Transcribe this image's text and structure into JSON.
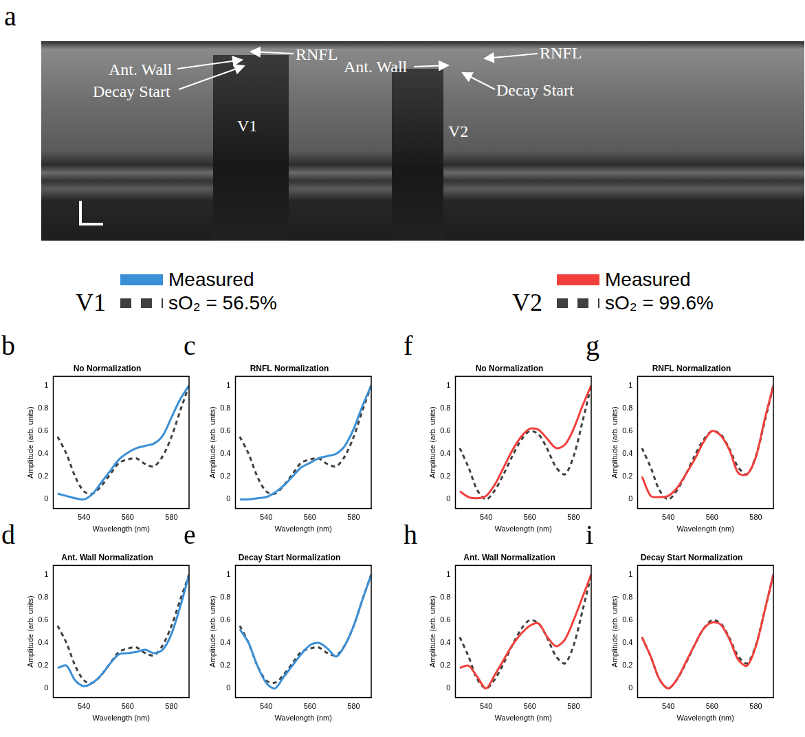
{
  "panel_a": {
    "letter": "a",
    "labels": [
      "RNFL",
      "Ant. Wall",
      "Decay Start",
      "V1",
      "RNFL",
      "Ant. Wall",
      "Decay Start",
      "V2"
    ]
  },
  "chart_data": [
    {
      "panel": "b",
      "group": "V1",
      "type": "line",
      "title": "No Normalization",
      "x_label": "Wavelength (nm)",
      "y_label": "Amplitude (arb. units)",
      "xlim": [
        526,
        588
      ],
      "xticks": [
        540,
        560,
        580
      ],
      "ylim": [
        -0.08,
        1.08
      ],
      "yticks": [
        0,
        0.2,
        0.4,
        0.6,
        0.8,
        1
      ],
      "grid": false,
      "x": [
        528,
        532,
        536,
        540,
        544,
        548,
        552,
        556,
        560,
        564,
        568,
        572,
        576,
        580,
        584,
        588
      ],
      "series": [
        {
          "name": "Measured",
          "color": "#3b8fd6",
          "line_style": "solid",
          "values": [
            0.05,
            0.03,
            0.01,
            0.0,
            0.05,
            0.15,
            0.25,
            0.35,
            0.41,
            0.45,
            0.47,
            0.49,
            0.56,
            0.72,
            0.88,
            1.0
          ]
        },
        {
          "name": "sO₂ = 56.5%",
          "color": "#404040",
          "line_style": "dashed",
          "values": [
            0.55,
            0.4,
            0.2,
            0.07,
            0.05,
            0.12,
            0.22,
            0.32,
            0.35,
            0.36,
            0.31,
            0.29,
            0.38,
            0.55,
            0.78,
            1.0
          ]
        }
      ]
    },
    {
      "panel": "c",
      "group": "V1",
      "type": "line",
      "title": "RNFL Normalization",
      "x_label": "Wavelength (nm)",
      "y_label": "Amplitude (arb. units)",
      "xlim": [
        526,
        588
      ],
      "xticks": [
        540,
        560,
        580
      ],
      "ylim": [
        -0.08,
        1.08
      ],
      "yticks": [
        0,
        0.2,
        0.4,
        0.6,
        0.8,
        1
      ],
      "grid": false,
      "x": [
        528,
        532,
        536,
        540,
        544,
        548,
        552,
        556,
        560,
        564,
        568,
        572,
        576,
        580,
        584,
        588
      ],
      "series": [
        {
          "name": "Measured",
          "color": "#3b8fd6",
          "line_style": "solid",
          "values": [
            0.0,
            0.0,
            0.01,
            0.02,
            0.06,
            0.12,
            0.2,
            0.28,
            0.32,
            0.36,
            0.38,
            0.4,
            0.47,
            0.62,
            0.82,
            1.0
          ]
        },
        {
          "name": "sO₂ = 56.5%",
          "color": "#404040",
          "line_style": "dashed",
          "values": [
            0.55,
            0.4,
            0.2,
            0.07,
            0.05,
            0.12,
            0.22,
            0.32,
            0.35,
            0.36,
            0.31,
            0.29,
            0.38,
            0.55,
            0.78,
            1.0
          ]
        }
      ]
    },
    {
      "panel": "d",
      "group": "V1",
      "type": "line",
      "title": "Ant. Wall Normalization",
      "x_label": "Wavelength (nm)",
      "y_label": "Amplitude (arb. units)",
      "xlim": [
        526,
        588
      ],
      "xticks": [
        540,
        560,
        580
      ],
      "ylim": [
        -0.08,
        1.08
      ],
      "yticks": [
        0,
        0.2,
        0.4,
        0.6,
        0.8,
        1
      ],
      "grid": false,
      "x": [
        528,
        532,
        536,
        540,
        544,
        548,
        552,
        556,
        560,
        564,
        568,
        572,
        576,
        580,
        584,
        588
      ],
      "series": [
        {
          "name": "Measured",
          "color": "#3b8fd6",
          "line_style": "solid",
          "values": [
            0.18,
            0.2,
            0.07,
            0.02,
            0.05,
            0.12,
            0.22,
            0.3,
            0.31,
            0.32,
            0.34,
            0.31,
            0.34,
            0.48,
            0.72,
            1.0
          ]
        },
        {
          "name": "sO₂ = 56.5%",
          "color": "#404040",
          "line_style": "dashed",
          "values": [
            0.55,
            0.4,
            0.2,
            0.07,
            0.05,
            0.12,
            0.22,
            0.32,
            0.35,
            0.36,
            0.31,
            0.29,
            0.38,
            0.55,
            0.78,
            1.0
          ]
        }
      ]
    },
    {
      "panel": "e",
      "group": "V1",
      "type": "line",
      "title": "Decay Start Normalization",
      "x_label": "Wavelength (nm)",
      "y_label": "Amplitude (arb. units)",
      "xlim": [
        526,
        588
      ],
      "xticks": [
        540,
        560,
        580
      ],
      "ylim": [
        -0.08,
        1.08
      ],
      "yticks": [
        0,
        0.2,
        0.4,
        0.6,
        0.8,
        1
      ],
      "grid": false,
      "x": [
        528,
        532,
        536,
        540,
        544,
        548,
        552,
        556,
        560,
        564,
        568,
        572,
        576,
        580,
        584,
        588
      ],
      "series": [
        {
          "name": "Measured",
          "color": "#3b8fd6",
          "line_style": "solid",
          "values": [
            0.52,
            0.4,
            0.2,
            0.05,
            0.0,
            0.1,
            0.2,
            0.3,
            0.38,
            0.4,
            0.35,
            0.28,
            0.38,
            0.55,
            0.78,
            1.0
          ]
        },
        {
          "name": "sO₂ = 56.5%",
          "color": "#404040",
          "line_style": "dashed",
          "values": [
            0.55,
            0.4,
            0.2,
            0.07,
            0.05,
            0.12,
            0.22,
            0.32,
            0.35,
            0.36,
            0.31,
            0.29,
            0.38,
            0.55,
            0.78,
            1.0
          ]
        }
      ]
    },
    {
      "panel": "f",
      "group": "V2",
      "type": "line",
      "title": "No Normalization",
      "x_label": "Wavelength (nm)",
      "y_label": "Amplitude (arb. units)",
      "xlim": [
        526,
        588
      ],
      "xticks": [
        540,
        560,
        580
      ],
      "ylim": [
        -0.08,
        1.08
      ],
      "yticks": [
        0,
        0.2,
        0.4,
        0.6,
        0.8,
        1
      ],
      "grid": false,
      "x": [
        528,
        532,
        536,
        540,
        544,
        548,
        552,
        556,
        560,
        564,
        568,
        572,
        576,
        580,
        584,
        588
      ],
      "series": [
        {
          "name": "Measured",
          "color": "#f0403c",
          "line_style": "solid",
          "values": [
            0.07,
            0.02,
            0.01,
            0.03,
            0.13,
            0.28,
            0.43,
            0.55,
            0.62,
            0.61,
            0.53,
            0.45,
            0.48,
            0.62,
            0.82,
            1.0
          ]
        },
        {
          "name": "sO₂ = 99.6%",
          "color": "#404040",
          "line_style": "dashed",
          "values": [
            0.45,
            0.28,
            0.08,
            0.0,
            0.08,
            0.22,
            0.38,
            0.52,
            0.6,
            0.57,
            0.44,
            0.28,
            0.22,
            0.38,
            0.68,
            1.0
          ]
        }
      ]
    },
    {
      "panel": "g",
      "group": "V2",
      "type": "line",
      "title": "RNFL Normalization",
      "x_label": "Wavelength (nm)",
      "y_label": "Amplitude (arb. units)",
      "xlim": [
        526,
        588
      ],
      "xticks": [
        540,
        560,
        580
      ],
      "ylim": [
        -0.08,
        1.08
      ],
      "yticks": [
        0,
        0.2,
        0.4,
        0.6,
        0.8,
        1
      ],
      "grid": false,
      "x": [
        528,
        532,
        536,
        540,
        544,
        548,
        552,
        556,
        560,
        564,
        568,
        572,
        576,
        580,
        584,
        588
      ],
      "series": [
        {
          "name": "Measured",
          "color": "#f0403c",
          "line_style": "solid",
          "values": [
            0.2,
            0.03,
            0.02,
            0.03,
            0.1,
            0.22,
            0.35,
            0.5,
            0.6,
            0.56,
            0.43,
            0.23,
            0.22,
            0.37,
            0.7,
            1.0
          ]
        },
        {
          "name": "sO₂ = 99.6%",
          "color": "#404040",
          "line_style": "dashed",
          "values": [
            0.45,
            0.28,
            0.08,
            0.0,
            0.08,
            0.22,
            0.38,
            0.52,
            0.6,
            0.57,
            0.44,
            0.28,
            0.22,
            0.38,
            0.68,
            1.0
          ]
        }
      ]
    },
    {
      "panel": "h",
      "group": "V2",
      "type": "line",
      "title": "Ant. Wall Normalization",
      "x_label": "Wavelength (nm)",
      "y_label": "Amplitude (arb. units)",
      "xlim": [
        526,
        588
      ],
      "xticks": [
        540,
        560,
        580
      ],
      "ylim": [
        -0.08,
        1.08
      ],
      "yticks": [
        0,
        0.2,
        0.4,
        0.6,
        0.8,
        1
      ],
      "grid": false,
      "x": [
        528,
        532,
        536,
        540,
        544,
        548,
        552,
        556,
        560,
        564,
        568,
        572,
        576,
        580,
        584,
        588
      ],
      "series": [
        {
          "name": "Measured",
          "color": "#f0403c",
          "line_style": "solid",
          "values": [
            0.18,
            0.2,
            0.1,
            0.0,
            0.12,
            0.25,
            0.38,
            0.48,
            0.55,
            0.57,
            0.45,
            0.37,
            0.43,
            0.6,
            0.8,
            1.0
          ]
        },
        {
          "name": "sO₂ = 99.6%",
          "color": "#404040",
          "line_style": "dashed",
          "values": [
            0.45,
            0.28,
            0.08,
            0.0,
            0.08,
            0.22,
            0.38,
            0.52,
            0.6,
            0.57,
            0.44,
            0.28,
            0.22,
            0.38,
            0.68,
            1.0
          ]
        }
      ]
    },
    {
      "panel": "i",
      "group": "V2",
      "type": "line",
      "title": "Decay Start Normalization",
      "x_label": "Wavelength (nm)",
      "y_label": "Amplitude (arb. units)",
      "xlim": [
        526,
        588
      ],
      "xticks": [
        540,
        560,
        580
      ],
      "ylim": [
        -0.08,
        1.08
      ],
      "yticks": [
        0,
        0.2,
        0.4,
        0.6,
        0.8,
        1
      ],
      "grid": false,
      "x": [
        528,
        532,
        536,
        540,
        544,
        548,
        552,
        556,
        560,
        564,
        568,
        572,
        576,
        580,
        584,
        588
      ],
      "series": [
        {
          "name": "Measured",
          "color": "#f0403c",
          "line_style": "solid",
          "values": [
            0.45,
            0.28,
            0.08,
            0.0,
            0.08,
            0.23,
            0.38,
            0.52,
            0.58,
            0.56,
            0.43,
            0.25,
            0.2,
            0.37,
            0.68,
            1.0
          ]
        },
        {
          "name": "sO₂ = 99.6%",
          "color": "#404040",
          "line_style": "dashed",
          "values": [
            0.45,
            0.28,
            0.08,
            0.0,
            0.08,
            0.22,
            0.38,
            0.52,
            0.6,
            0.57,
            0.44,
            0.28,
            0.22,
            0.38,
            0.68,
            1.0
          ]
        }
      ]
    }
  ]
}
